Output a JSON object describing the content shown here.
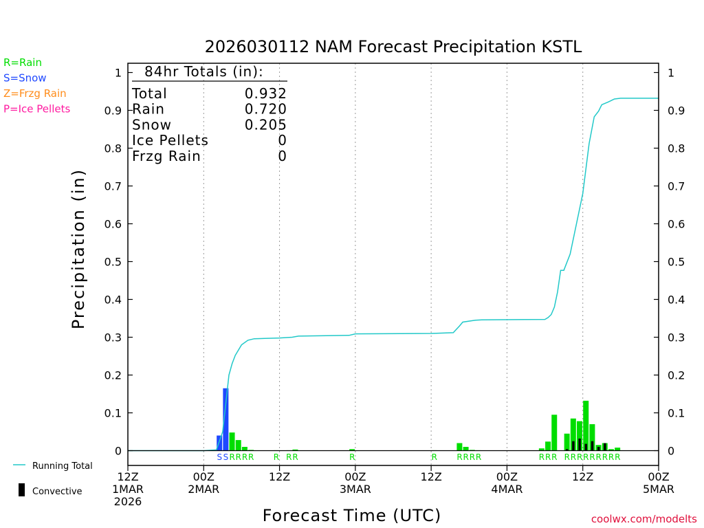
{
  "colors": {
    "rain": "#00dd00",
    "snow": "#1f48ff",
    "frzg_rain": "#ff8c1a",
    "ice_pellets": "#ff1aa0",
    "running_total": "#20c8c8",
    "convective": "#000000",
    "axis": "#000000",
    "grid": "#999999",
    "credit": "#e0103c"
  },
  "legend_types": [
    {
      "label": "R=Rain",
      "color_key": "rain"
    },
    {
      "label": "S=Snow",
      "color_key": "snow"
    },
    {
      "label": "Z=Frzg Rain",
      "color_key": "frzg_rain"
    },
    {
      "label": "P=Ice Pellets",
      "color_key": "ice_pellets"
    }
  ],
  "legend_lines": {
    "running_total": "Running Total",
    "convective": "Convective"
  },
  "totals_box": {
    "title": "84hr Totals (in):",
    "rows": [
      {
        "label": "Total",
        "value": "0.932"
      },
      {
        "label": "Rain",
        "value": "0.720"
      },
      {
        "label": "Snow",
        "value": "0.205"
      },
      {
        "label": "Ice Pellets",
        "value": "0"
      },
      {
        "label": "Frzg Rain",
        "value": "0"
      }
    ]
  },
  "credit": "coolwx.com/modelts",
  "chart_data": {
    "type": "bar",
    "title": "2026030112 NAM Forecast Precipitation KSTL",
    "xlabel": "Forecast Time (UTC)",
    "ylabel": "Precipitation (in)",
    "xlim": [
      0,
      84
    ],
    "ylim": [
      0,
      1
    ],
    "y_ticks": [
      "0",
      "0.1",
      "0.2",
      "0.3",
      "0.4",
      "0.5",
      "0.6",
      "0.7",
      "0.8",
      "0.9",
      "1"
    ],
    "x_ticks": [
      {
        "hour": 0,
        "line1": "12Z",
        "line2": "1MAR",
        "line3": "2026"
      },
      {
        "hour": 12,
        "line1": "00Z",
        "line2": "2MAR",
        "line3": ""
      },
      {
        "hour": 24,
        "line1": "12Z",
        "line2": "",
        "line3": ""
      },
      {
        "hour": 36,
        "line1": "00Z",
        "line2": "3MAR",
        "line3": ""
      },
      {
        "hour": 48,
        "line1": "12Z",
        "line2": "",
        "line3": ""
      },
      {
        "hour": 60,
        "line1": "00Z",
        "line2": "4MAR",
        "line3": ""
      },
      {
        "hour": 72,
        "line1": "12Z",
        "line2": "",
        "line3": ""
      },
      {
        "hour": 84,
        "line1": "00Z",
        "line2": "5MAR",
        "line3": ""
      }
    ],
    "gridlines_hours": [
      12,
      24,
      36,
      48,
      60,
      72
    ],
    "bars": [
      {
        "hour": 15,
        "value": 0.04,
        "ptype": "S"
      },
      {
        "hour": 16,
        "value": 0.165,
        "ptype": "S"
      },
      {
        "hour": 17,
        "value": 0.048,
        "ptype": "R"
      },
      {
        "hour": 18,
        "value": 0.028,
        "ptype": "R"
      },
      {
        "hour": 19,
        "value": 0.01,
        "ptype": "R"
      },
      {
        "hour": 20,
        "value": 0.002,
        "ptype": "R"
      },
      {
        "hour": 24,
        "value": 0.001,
        "ptype": "R"
      },
      {
        "hour": 26,
        "value": 0.001,
        "ptype": "R"
      },
      {
        "hour": 27,
        "value": 0.003,
        "ptype": "R"
      },
      {
        "hour": 36,
        "value": 0.004,
        "ptype": "R"
      },
      {
        "hour": 49,
        "value": 0.001,
        "ptype": "R"
      },
      {
        "hour": 53,
        "value": 0.02,
        "ptype": "R"
      },
      {
        "hour": 54,
        "value": 0.01,
        "ptype": "R"
      },
      {
        "hour": 55,
        "value": 0.002,
        "ptype": "R"
      },
      {
        "hour": 56,
        "value": 0.001,
        "ptype": "R"
      },
      {
        "hour": 66,
        "value": 0.006,
        "ptype": "R"
      },
      {
        "hour": 67,
        "value": 0.024,
        "ptype": "R"
      },
      {
        "hour": 68,
        "value": 0.095,
        "ptype": "R"
      },
      {
        "hour": 70,
        "value": 0.045,
        "ptype": "R"
      },
      {
        "hour": 71,
        "value": 0.085,
        "ptype": "R"
      },
      {
        "hour": 72,
        "value": 0.078,
        "ptype": "R"
      },
      {
        "hour": 73,
        "value": 0.132,
        "ptype": "R"
      },
      {
        "hour": 74,
        "value": 0.07,
        "ptype": "R"
      },
      {
        "hour": 75,
        "value": 0.015,
        "ptype": "R"
      },
      {
        "hour": 76,
        "value": 0.02,
        "ptype": "R"
      },
      {
        "hour": 77,
        "value": 0.004,
        "ptype": "R"
      },
      {
        "hour": 78,
        "value": 0.008,
        "ptype": "R"
      }
    ],
    "convective": [
      {
        "hour": 70,
        "value": 0.004
      },
      {
        "hour": 71,
        "value": 0.025
      },
      {
        "hour": 72,
        "value": 0.032
      },
      {
        "hour": 73,
        "value": 0.018
      },
      {
        "hour": 74,
        "value": 0.025
      },
      {
        "hour": 75,
        "value": 0.01
      },
      {
        "hour": 76,
        "value": 0.02
      }
    ],
    "ptype_labels": [
      {
        "hour": 15,
        "text": "S",
        "color_key": "snow"
      },
      {
        "hour": 16,
        "text": "S",
        "color_key": "snow"
      },
      {
        "hour": 17,
        "text": "R",
        "color_key": "rain"
      },
      {
        "hour": 18,
        "text": "R",
        "color_key": "rain"
      },
      {
        "hour": 19,
        "text": "R",
        "color_key": "rain"
      },
      {
        "hour": 20,
        "text": "R",
        "color_key": "rain"
      },
      {
        "hour": 24,
        "text": "R",
        "color_key": "rain"
      },
      {
        "hour": 26,
        "text": "R",
        "color_key": "rain"
      },
      {
        "hour": 27,
        "text": "R",
        "color_key": "rain"
      },
      {
        "hour": 36,
        "text": "R",
        "color_key": "rain"
      },
      {
        "hour": 49,
        "text": "R",
        "color_key": "rain"
      },
      {
        "hour": 53,
        "text": "R",
        "color_key": "rain"
      },
      {
        "hour": 54,
        "text": "R",
        "color_key": "rain"
      },
      {
        "hour": 55,
        "text": "R",
        "color_key": "rain"
      },
      {
        "hour": 56,
        "text": "R",
        "color_key": "rain"
      },
      {
        "hour": 66,
        "text": "R",
        "color_key": "rain"
      },
      {
        "hour": 67,
        "text": "R",
        "color_key": "rain"
      },
      {
        "hour": 68,
        "text": "R",
        "color_key": "rain"
      },
      {
        "hour": 70,
        "text": "R",
        "color_key": "rain"
      },
      {
        "hour": 71,
        "text": "R",
        "color_key": "rain"
      },
      {
        "hour": 72,
        "text": "R",
        "color_key": "rain"
      },
      {
        "hour": 73,
        "text": "R",
        "color_key": "rain"
      },
      {
        "hour": 74,
        "text": "R",
        "color_key": "rain"
      },
      {
        "hour": 75,
        "text": "R",
        "color_key": "rain"
      },
      {
        "hour": 76,
        "text": "R",
        "color_key": "rain"
      },
      {
        "hour": 77,
        "text": "R",
        "color_key": "rain"
      },
      {
        "hour": 78,
        "text": "R",
        "color_key": "rain"
      }
    ],
    "running_total": [
      [
        0,
        0
      ],
      [
        12,
        0
      ],
      [
        14,
        0.002
      ],
      [
        15,
        0.05
      ],
      [
        16,
        0.2
      ],
      [
        16.5,
        0.23
      ],
      [
        17,
        0.252
      ],
      [
        18,
        0.28
      ],
      [
        19,
        0.292
      ],
      [
        20,
        0.296
      ],
      [
        24,
        0.298
      ],
      [
        26,
        0.3
      ],
      [
        27,
        0.303
      ],
      [
        35,
        0.305
      ],
      [
        36,
        0.309
      ],
      [
        48,
        0.31
      ],
      [
        51.5,
        0.312
      ],
      [
        52.5,
        0.33
      ],
      [
        53,
        0.34
      ],
      [
        55,
        0.345
      ],
      [
        56,
        0.346
      ],
      [
        66,
        0.347
      ],
      [
        66.5,
        0.352
      ],
      [
        67,
        0.36
      ],
      [
        67.5,
        0.38
      ],
      [
        68,
        0.42
      ],
      [
        68.5,
        0.477
      ],
      [
        69,
        0.477
      ],
      [
        70,
        0.52
      ],
      [
        71,
        0.6
      ],
      [
        72,
        0.68
      ],
      [
        73,
        0.812
      ],
      [
        73.8,
        0.883
      ],
      [
        74.5,
        0.898
      ],
      [
        75,
        0.915
      ],
      [
        76,
        0.922
      ],
      [
        77,
        0.93
      ],
      [
        78,
        0.932
      ],
      [
        84,
        0.932
      ]
    ]
  }
}
